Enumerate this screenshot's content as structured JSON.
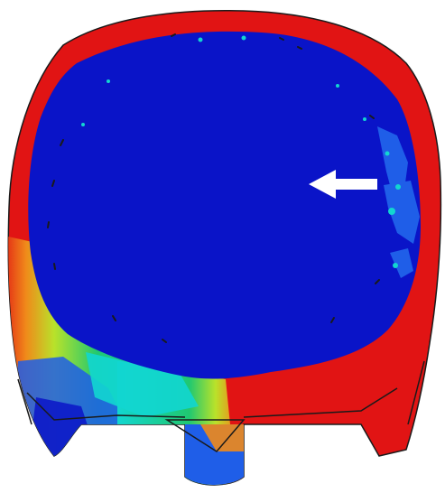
{
  "figure": {
    "description_visible_text": "",
    "colors": {
      "background": "#ffffff",
      "red": "#e11414",
      "blue": "#0a14c8",
      "blue_light": "#1f5ee8",
      "cyan": "#12d6d0",
      "green": "#20c870",
      "yellow_green": "#b9e22a",
      "orange": "#f08a1a",
      "arrow": "#ffffff",
      "edge": "#1a1a1a"
    },
    "annotations": {
      "arrow_direction": "left"
    }
  }
}
